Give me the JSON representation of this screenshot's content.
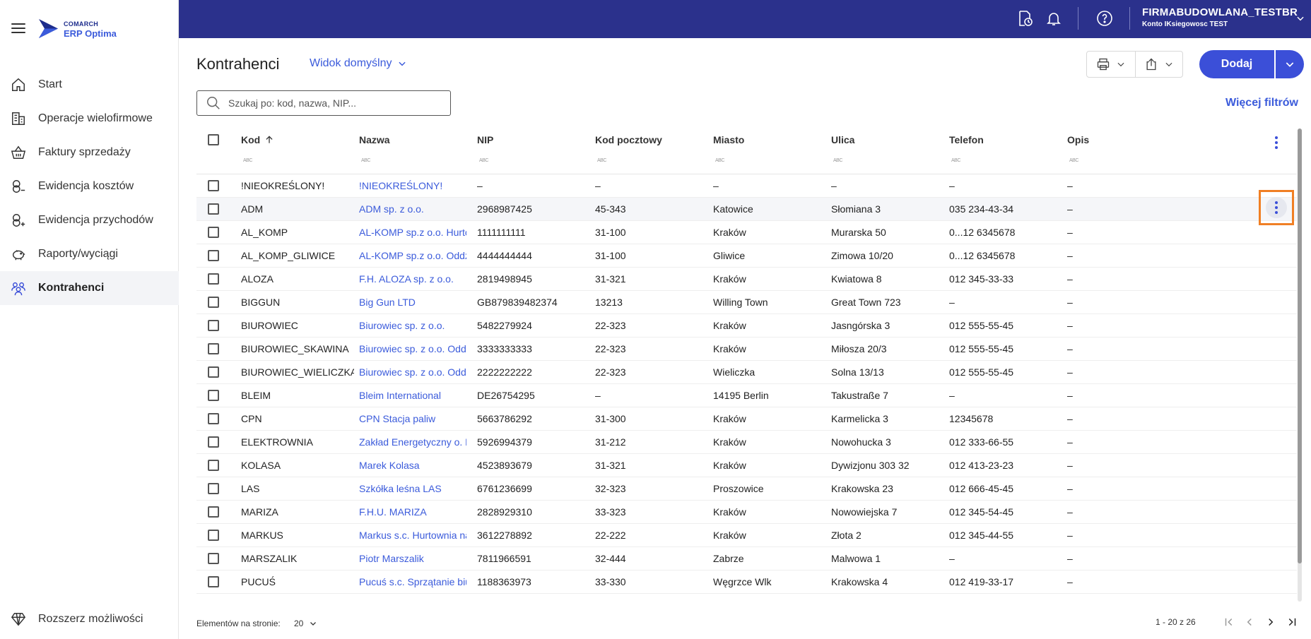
{
  "brand": {
    "line1": "COMARCH",
    "line2": "ERP Optima"
  },
  "sidebar": {
    "items": [
      {
        "label": "Start",
        "icon": "home-icon"
      },
      {
        "label": "Operacje wielofirmowe",
        "icon": "buildings-icon"
      },
      {
        "label": "Faktury sprzedaży",
        "icon": "basket-icon"
      },
      {
        "label": "Ewidencja kosztów",
        "icon": "coins-minus-icon"
      },
      {
        "label": "Ewidencja przychodów",
        "icon": "coins-plus-icon"
      },
      {
        "label": "Raporty/wyciągi",
        "icon": "piggy-bank-icon"
      },
      {
        "label": "Kontrahenci",
        "icon": "people-icon",
        "active": true
      }
    ],
    "bottom": {
      "label": "Rozszerz możliwości",
      "icon": "diamond-icon"
    }
  },
  "topbar": {
    "company": "FIRMABUDOWLANA_TESTBR",
    "user": "Konto IKsiegowosc TEST",
    "icons": [
      "document-clock-icon",
      "bell-icon",
      "help-icon",
      "chevron-down-icon"
    ]
  },
  "header": {
    "title": "Kontrahenci",
    "view": "Widok domyślny",
    "add_label": "Dodaj",
    "more_filters": "Więcej filtrów"
  },
  "search": {
    "placeholder": "Szukaj po: kod, nazwa, NIP..."
  },
  "table": {
    "columns": [
      "Kod",
      "Nazwa",
      "NIP",
      "Kod pocztowy",
      "Miasto",
      "Ulica",
      "Telefon",
      "Opis"
    ],
    "filter_label": "ABC",
    "rows": [
      [
        "!NIEOKREŚLONY!",
        "!NIEOKREŚLONY!",
        "–",
        "–",
        "–",
        "–",
        "–",
        "–"
      ],
      [
        "ADM",
        "ADM sp. z o.o.",
        "2968987425",
        "45-343",
        "Katowice",
        "Słomiana 3",
        "035 234-43-34",
        "–"
      ],
      [
        "AL_KOMP",
        "AL-KOMP sp.z o.o. Hurtownia",
        "1111111111",
        "31-100",
        "Kraków",
        "Murarska 50",
        "0...12 6345678",
        "–"
      ],
      [
        "AL_KOMP_GLIWICE",
        "AL-KOMP sp.z o.o. Oddział",
        "4444444444",
        "31-100",
        "Gliwice",
        "Zimowa 10/20",
        "0...12 6345678",
        "–"
      ],
      [
        "ALOZA",
        "F.H. ALOZA sp. z o.o.",
        "2819498945",
        "31-321",
        "Kraków",
        "Kwiatowa 8",
        "012 345-33-33",
        "–"
      ],
      [
        "BIGGUN",
        "Big Gun LTD",
        "GB879839482374",
        "13213",
        "Willing Town",
        "Great Town 723",
        "–",
        "–"
      ],
      [
        "BIUROWIEC",
        "Biurowiec sp. z o.o.",
        "5482279924",
        "22-323",
        "Kraków",
        "Jasngórska 3",
        "012 555-55-45",
        "–"
      ],
      [
        "BIUROWIEC_SKAWINA",
        "Biurowiec sp. z o.o. Oddział",
        "3333333333",
        "22-323",
        "Kraków",
        "Miłosza 20/3",
        "012 555-55-45",
        "–"
      ],
      [
        "BIUROWIEC_WIELICZKA",
        "Biurowiec sp. z o.o. Oddział",
        "2222222222",
        "22-323",
        "Wieliczka",
        "Solna 13/13",
        "012 555-55-45",
        "–"
      ],
      [
        "BLEIM",
        "Bleim International",
        "DE26754295",
        "–",
        "14195 Berlin",
        "Takustraße 7",
        "–",
        "–"
      ],
      [
        "CPN",
        "CPN Stacja paliw",
        "5663786292",
        "31-300",
        "Kraków",
        "Karmelicka 3",
        "12345678",
        "–"
      ],
      [
        "ELEKTROWNIA",
        "Zakład Energetyczny o. Kraków",
        "5926994379",
        "31-212",
        "Kraków",
        "Nowohucka 3",
        "012 333-66-55",
        "–"
      ],
      [
        "KOLASA",
        "Marek Kolasa",
        "4523893679",
        "31-321",
        "Kraków",
        "Dywizjonu 303 32",
        "012 413-23-23",
        "–"
      ],
      [
        "LAS",
        "Szkółka leśna LAS",
        "6761236699",
        "32-323",
        "Proszowice",
        "Krakowska 23",
        "012 666-45-45",
        "–"
      ],
      [
        "MARIZA",
        "F.H.U. MARIZA",
        "2828929310",
        "33-323",
        "Kraków",
        "Nowowiejska 7",
        "012 345-54-45",
        "–"
      ],
      [
        "MARKUS",
        "Markus s.c. Hurtownia napojów",
        "3612278892",
        "22-222",
        "Kraków",
        "Złota 2",
        "012 345-44-55",
        "–"
      ],
      [
        "MARSZALIK",
        "Piotr Marszalik",
        "7811966591",
        "32-444",
        "Zabrze",
        "Malwowa 1",
        "–",
        "–"
      ],
      [
        "PUCUŚ",
        "Pucuś s.c. Sprzątanie biur",
        "1188363973",
        "33-330",
        "Węgrzce Wlk",
        "Krakowska 4",
        "012 419-33-17",
        "–"
      ]
    ]
  },
  "footer": {
    "page_size_label": "Elementów na stronie:",
    "page_size": "20",
    "range": "1 - 20 z 26"
  },
  "colors": {
    "topbar": "#2b318c",
    "accent": "#3b4fd8",
    "link": "#3b5bdb",
    "highlight": "#f07f24"
  }
}
